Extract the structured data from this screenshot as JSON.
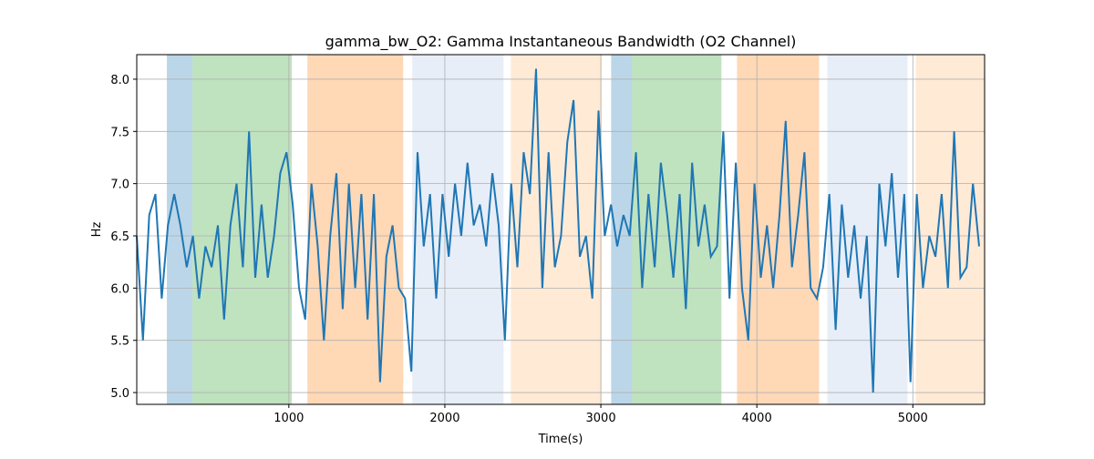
{
  "chart_data": {
    "type": "line",
    "title": "gamma_bw_O2: Gamma Instantaneous Bandwidth (O2 Channel)",
    "xlabel": "Time(s)",
    "ylabel": "Hz",
    "x": [
      25,
      65,
      105,
      145,
      185,
      225,
      265,
      305,
      345,
      385,
      425,
      465,
      505,
      545,
      585,
      625,
      665,
      705,
      745,
      785,
      825,
      865,
      905,
      945,
      985,
      1025,
      1065,
      1105,
      1145,
      1185,
      1225,
      1265,
      1305,
      1345,
      1385,
      1425,
      1465,
      1505,
      1545,
      1585,
      1625,
      1665,
      1705,
      1745,
      1785,
      1825,
      1865,
      1905,
      1945,
      1985,
      2025,
      2065,
      2105,
      2145,
      2185,
      2225,
      2265,
      2305,
      2345,
      2385,
      2425,
      2465,
      2505,
      2545,
      2585,
      2625,
      2665,
      2705,
      2745,
      2785,
      2825,
      2865,
      2905,
      2945,
      2985,
      3025,
      3065,
      3105,
      3145,
      3185,
      3225,
      3265,
      3305,
      3345,
      3385,
      3425,
      3465,
      3505,
      3545,
      3585,
      3625,
      3665,
      3705,
      3745,
      3785,
      3825,
      3865,
      3905,
      3945,
      3985,
      4025,
      4065,
      4105,
      4145,
      4185,
      4225,
      4265,
      4305,
      4345,
      4385,
      4425,
      4465,
      4505,
      4545,
      4585,
      4625,
      4665,
      4705,
      4745,
      4785,
      4825,
      4865,
      4905,
      4945,
      4985,
      5025,
      5065,
      5105,
      5145,
      5185,
      5225,
      5265,
      5305,
      5345,
      5385,
      5425
    ],
    "values": [
      6.5,
      5.5,
      6.7,
      6.9,
      5.9,
      6.6,
      6.9,
      6.6,
      6.2,
      6.5,
      5.9,
      6.4,
      6.2,
      6.6,
      5.7,
      6.6,
      7.0,
      6.2,
      7.5,
      6.1,
      6.8,
      6.1,
      6.5,
      7.1,
      7.3,
      6.8,
      6.0,
      5.7,
      7.0,
      6.4,
      5.5,
      6.5,
      7.1,
      5.8,
      7.0,
      6.0,
      6.9,
      5.7,
      6.9,
      5.1,
      6.3,
      6.6,
      6.0,
      5.9,
      5.2,
      7.3,
      6.4,
      6.9,
      5.9,
      6.9,
      6.3,
      7.0,
      6.5,
      7.2,
      6.6,
      6.8,
      6.4,
      7.1,
      6.6,
      5.5,
      7.0,
      6.2,
      7.3,
      6.9,
      8.1,
      6.0,
      7.3,
      6.2,
      6.5,
      7.4,
      7.8,
      6.3,
      6.5,
      5.9,
      7.7,
      6.5,
      6.8,
      6.4,
      6.7,
      6.5,
      7.3,
      6.0,
      6.9,
      6.2,
      7.2,
      6.7,
      6.1,
      6.9,
      5.8,
      7.2,
      6.4,
      6.8,
      6.3,
      6.4,
      7.5,
      5.9,
      7.2,
      6.0,
      5.5,
      7.0,
      6.1,
      6.6,
      6.0,
      6.7,
      7.6,
      6.2,
      6.7,
      7.3,
      6.0,
      5.9,
      6.2,
      6.9,
      5.6,
      6.8,
      6.1,
      6.6,
      5.9,
      6.5,
      5.0,
      7.0,
      6.4,
      7.1,
      6.1,
      6.9,
      5.1,
      6.9,
      6.0,
      6.5,
      6.3,
      6.9,
      6.0,
      7.5,
      6.1,
      6.2,
      7.0,
      6.4
    ],
    "color": "#1f77b4",
    "shaded_regions": [
      {
        "start": 218,
        "end": 382,
        "color": "#1f77b4",
        "alpha": 0.3
      },
      {
        "start": 382,
        "end": 1019,
        "color": "#2ca02c",
        "alpha": 0.3
      },
      {
        "start": 1119,
        "end": 1733,
        "color": "#ff7f0e",
        "alpha": 0.3
      },
      {
        "start": 1791,
        "end": 2376,
        "color": "#aec7e8",
        "alpha": 0.3
      },
      {
        "start": 2423,
        "end": 3007,
        "color": "#ffbb78",
        "alpha": 0.3
      },
      {
        "start": 3066,
        "end": 3200,
        "color": "#1f77b4",
        "alpha": 0.3
      },
      {
        "start": 3200,
        "end": 3773,
        "color": "#2ca02c",
        "alpha": 0.3
      },
      {
        "start": 3873,
        "end": 4399,
        "color": "#ff7f0e",
        "alpha": 0.3
      },
      {
        "start": 4452,
        "end": 4966,
        "color": "#aec7e8",
        "alpha": 0.3
      },
      {
        "start": 5019,
        "end": 5460,
        "color": "#ffbb78",
        "alpha": 0.3
      }
    ],
    "xlim": [
      25,
      5460
    ],
    "ylim": [
      4.887,
      8.235
    ],
    "xticks": [
      1000,
      2000,
      3000,
      4000,
      5000
    ],
    "yticks": [
      {
        "value": 5,
        "label": "5.0"
      },
      5.5,
      {
        "value": 6,
        "label": "6.0"
      },
      6.5,
      {
        "value": 7,
        "label": "7.0"
      },
      7.5,
      {
        "value": 8,
        "label": "8.0"
      }
    ],
    "grid": true
  }
}
